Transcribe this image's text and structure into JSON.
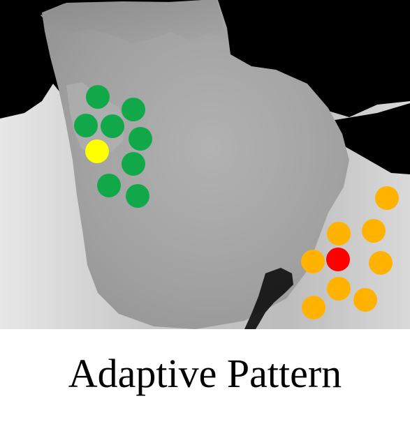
{
  "caption": "Adaptive Pattern",
  "colors": {
    "background": "#000000",
    "depth_dark": "#8f8f8f",
    "depth_light": "#dcdcdc",
    "left_pattern_neighbor": "#11a84a",
    "left_pattern_center": "#ffff00",
    "right_pattern_neighbor": "#ffb300",
    "right_pattern_center": "#ff0000"
  },
  "patterns": [
    {
      "name": "left-pattern",
      "neighbor_color": "#11a84a",
      "center_color": "#ffff00",
      "neighbor_count": 9,
      "center_count": 1
    },
    {
      "name": "right-pattern",
      "neighbor_color": "#ffb300",
      "center_color": "#ff0000",
      "neighbor_count": 9,
      "center_count": 1
    }
  ]
}
